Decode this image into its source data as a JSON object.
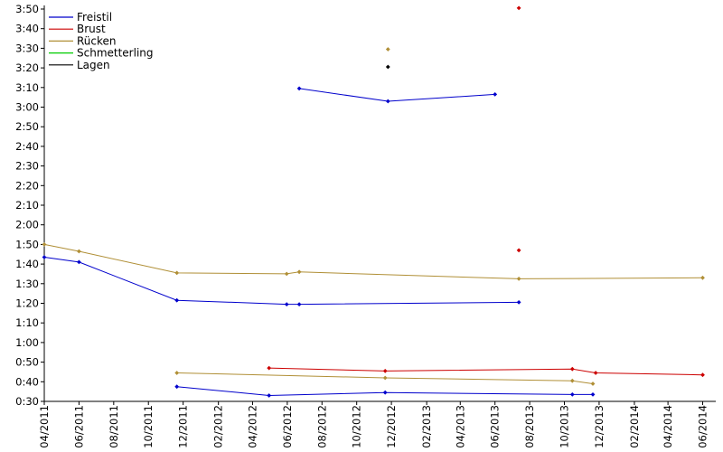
{
  "chart_data": {
    "type": "line",
    "title": "",
    "xlabel": "",
    "ylabel": "",
    "legend_position": "top-left",
    "x_axis": {
      "type": "date",
      "range": [
        "2011-04-01",
        "2014-06-24"
      ],
      "tick_labels": [
        "04/2011",
        "06/2011",
        "08/2011",
        "10/2011",
        "12/2011",
        "02/2012",
        "04/2012",
        "06/2012",
        "08/2012",
        "10/2012",
        "12/2012",
        "02/2013",
        "04/2013",
        "06/2013",
        "08/2013",
        "10/2013",
        "12/2013",
        "02/2014",
        "04/2014",
        "06/2014"
      ]
    },
    "y_axis": {
      "unit": "time (m:ss)",
      "range": [
        "0:30",
        "3:50"
      ],
      "tick_labels": [
        "0:30",
        "0:40",
        "0:50",
        "1:00",
        "1:10",
        "1:20",
        "1:30",
        "1:40",
        "1:50",
        "2:00",
        "2:10",
        "2:20",
        "2:30",
        "2:40",
        "2:50",
        "3:00",
        "3:10",
        "3:20",
        "3:30",
        "3:40",
        "3:50"
      ]
    },
    "series": [
      {
        "name": "Freistil",
        "color": "#0000cc",
        "segments": [
          [
            [
              "2011-04-01",
              "1:43.5"
            ],
            [
              "2011-06-01",
              "1:41"
            ],
            [
              "2011-11-20",
              "1:21.5"
            ],
            [
              "2012-05-31",
              "1:19.5"
            ],
            [
              "2012-06-22",
              "1:19.5"
            ],
            [
              "2013-07-13",
              "1:20.5"
            ]
          ],
          [
            [
              "2011-11-20",
              "0:37.5"
            ],
            [
              "2012-04-30",
              "0:33"
            ],
            [
              "2012-11-20",
              "0:34.5"
            ],
            [
              "2013-10-15",
              "0:33.5"
            ],
            [
              "2013-11-20",
              "0:33.5"
            ]
          ],
          [
            [
              "2012-06-22",
              "3:09.5"
            ],
            [
              "2012-11-25",
              "3:03"
            ],
            [
              "2013-06-01",
              "3:06.5"
            ]
          ]
        ]
      },
      {
        "name": "Brust",
        "color": "#cc0000",
        "segments": [
          [
            [
              "2012-04-30",
              "0:47"
            ],
            [
              "2012-11-20",
              "0:45.5"
            ],
            [
              "2013-10-15",
              "0:46.5"
            ],
            [
              "2013-11-25",
              "0:44.5"
            ],
            [
              "2014-06-01",
              "0:43.5"
            ]
          ],
          [
            [
              "2013-07-13",
              "1:47"
            ]
          ],
          [
            [
              "2013-07-13",
              "3:50.5"
            ]
          ]
        ]
      },
      {
        "name": "Rücken",
        "color": "#b08f36",
        "segments": [
          [
            [
              "2011-04-01",
              "1:50"
            ],
            [
              "2011-06-01",
              "1:46.5"
            ],
            [
              "2011-11-20",
              "1:35.5"
            ],
            [
              "2012-05-31",
              "1:35"
            ],
            [
              "2012-06-22",
              "1:36"
            ],
            [
              "2013-07-13",
              "1:32.5"
            ],
            [
              "2014-06-01",
              "1:33"
            ]
          ],
          [
            [
              "2011-11-20",
              "0:44.5"
            ],
            [
              "2012-11-20",
              "0:42"
            ],
            [
              "2013-10-15",
              "0:40.5"
            ],
            [
              "2013-11-20",
              "0:39"
            ]
          ],
          [
            [
              "2012-11-25",
              "3:29.5"
            ]
          ]
        ]
      },
      {
        "name": "Schmetterling",
        "color": "#00cc00",
        "segments": []
      },
      {
        "name": "Lagen",
        "color": "#000000",
        "segments": [
          [
            [
              "2012-11-25",
              "3:20.5"
            ]
          ]
        ]
      }
    ]
  }
}
